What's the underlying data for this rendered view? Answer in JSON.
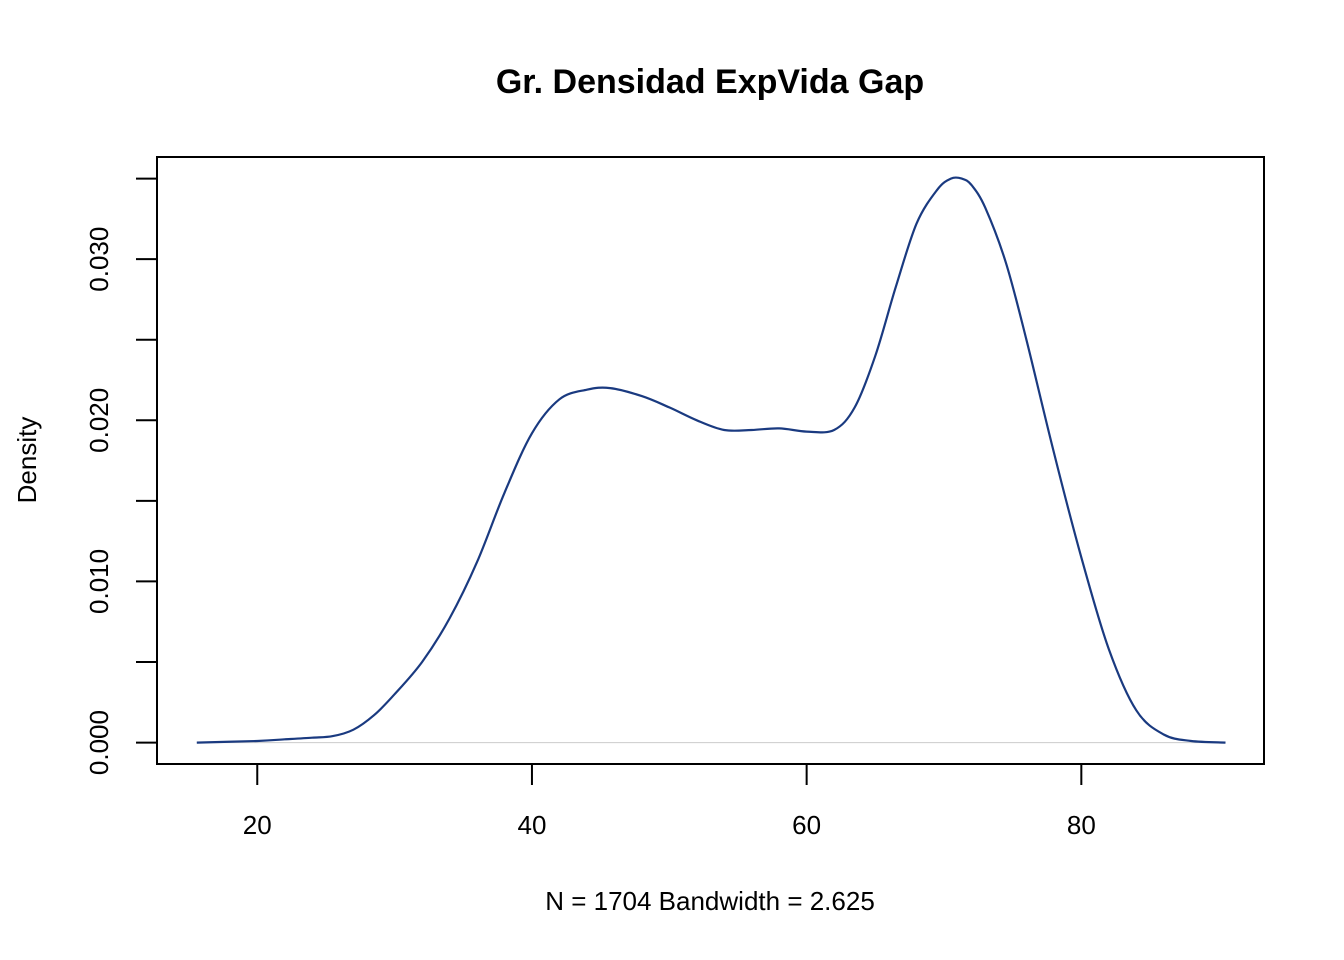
{
  "chart_data": {
    "type": "line",
    "title": "Gr. Densidad ExpVida Gap",
    "xlabel": "N = 1704   Bandwidth = 2.625",
    "ylabel": "Density",
    "xlim": [
      12.7,
      93.3
    ],
    "ylim": [
      -0.00133,
      0.03634
    ],
    "x_ticks": [
      20,
      40,
      60,
      80
    ],
    "x_tick_labels": [
      "20",
      "40",
      "60",
      "80"
    ],
    "y_ticks": [
      0.0,
      0.005,
      0.01,
      0.015,
      0.02,
      0.025,
      0.03,
      0.035
    ],
    "y_tick_labels": [
      "0.000",
      "",
      "0.010",
      "",
      "0.020",
      "",
      "0.030",
      ""
    ],
    "grid": false,
    "zero_line": true,
    "colors": {
      "curve": "#1a3a80",
      "zero_line": "#cccccc"
    },
    "series": [
      {
        "x": [
          15.6,
          20,
          22,
          24,
          25.5,
          27,
          28.5,
          30,
          32,
          34,
          36,
          38,
          40,
          42,
          44,
          45.7,
          48,
          50,
          52,
          54,
          56,
          58,
          60,
          62,
          63.5,
          65,
          66.5,
          68,
          69.5,
          70.5,
          71.3,
          72,
          73,
          74.5,
          76,
          78,
          80,
          82,
          84,
          86,
          88,
          90.5
        ],
        "y": [
          0.0,
          0.0001,
          0.0002,
          0.0003,
          0.0004,
          0.0008,
          0.0017,
          0.003,
          0.005,
          0.0077,
          0.0112,
          0.0155,
          0.0192,
          0.0213,
          0.0219,
          0.022,
          0.0215,
          0.0208,
          0.02,
          0.0194,
          0.0194,
          0.0195,
          0.0193,
          0.0194,
          0.0208,
          0.024,
          0.0283,
          0.0322,
          0.0343,
          0.035,
          0.035,
          0.0346,
          0.0332,
          0.0298,
          0.025,
          0.018,
          0.0115,
          0.0058,
          0.002,
          0.0005,
          0.0001,
          0.0
        ]
      }
    ]
  }
}
